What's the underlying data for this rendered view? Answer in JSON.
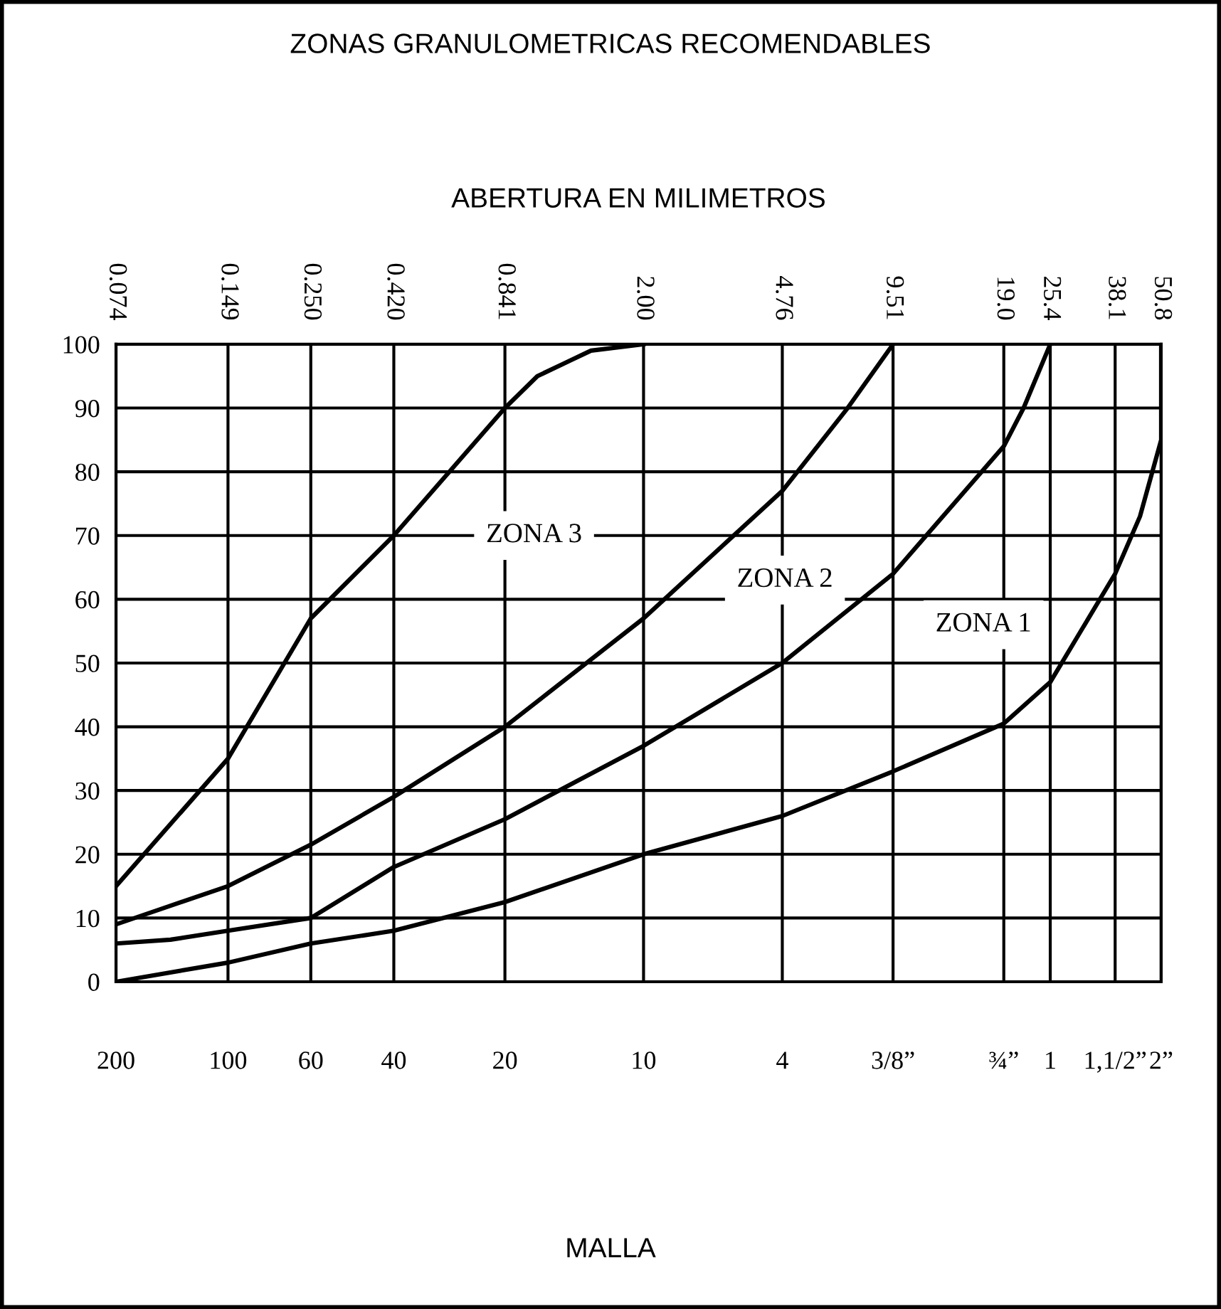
{
  "chart_data": {
    "type": "line",
    "title": "ZONAS GRANULOMETRICAS RECOMENDABLES",
    "xlabel": "ABERTURA EN MILIMETROS",
    "log": "x",
    "xlim": [
      0.074,
      50.8
    ],
    "ylim": [
      0,
      100
    ],
    "xticks": [
      0.074,
      0.149,
      {
        "value": 0.25,
        "label": "0.250"
      },
      {
        "value": 0.42,
        "label": "0.420"
      },
      0.841,
      {
        "value": 2.0,
        "label": "2.00"
      },
      4.76,
      9.51,
      {
        "value": 19.0,
        "label": "19.0"
      },
      25.4,
      38.1,
      50.8
    ],
    "yticks": [
      0,
      10,
      20,
      30,
      40,
      50,
      60,
      70,
      80,
      90,
      100
    ],
    "grid": true,
    "marker": "none",
    "line_style": "solid",
    "series": [
      {
        "color": "#000000",
        "x": [
          0.074,
          0.149,
          0.25,
          0.42,
          0.841,
          1.03,
          1.44,
          2.0
        ],
        "values": [
          15,
          35,
          57,
          70,
          90,
          95,
          99,
          100
        ]
      },
      {
        "color": "#000000",
        "x": [
          0.074,
          0.149,
          0.25,
          0.42,
          0.841,
          2.0,
          4.76,
          7.16,
          9.51
        ],
        "values": [
          9,
          15,
          21.5,
          29,
          40,
          57,
          77,
          90,
          100
        ]
      },
      {
        "color": "#000000",
        "x": [
          0.074,
          0.104,
          0.149,
          0.25,
          0.42,
          0.841,
          2.0,
          4.76,
          9.51,
          19.0,
          21.5,
          25.4
        ],
        "values": [
          6,
          6.6,
          8,
          10,
          18,
          25.5,
          37,
          50,
          64,
          84,
          90,
          100
        ]
      },
      {
        "color": "#000000",
        "x": [
          0.074,
          0.149,
          0.25,
          0.42,
          0.841,
          2.0,
          4.76,
          9.51,
          19.0,
          25.4,
          38.1,
          44.5,
          50.8,
          50.8
        ],
        "values": [
          0,
          3,
          6,
          8,
          12.5,
          20,
          26,
          33,
          40.5,
          47,
          64,
          73,
          85,
          100
        ]
      }
    ],
    "annotations": [
      "ZONA 3",
      "ZONA 2",
      "ZONA 1",
      "MALLA",
      "200",
      "100",
      "60",
      "40",
      "20",
      "10",
      "4",
      "3/8”",
      "¾”",
      "1",
      "1,1/2”",
      "2”"
    ]
  }
}
